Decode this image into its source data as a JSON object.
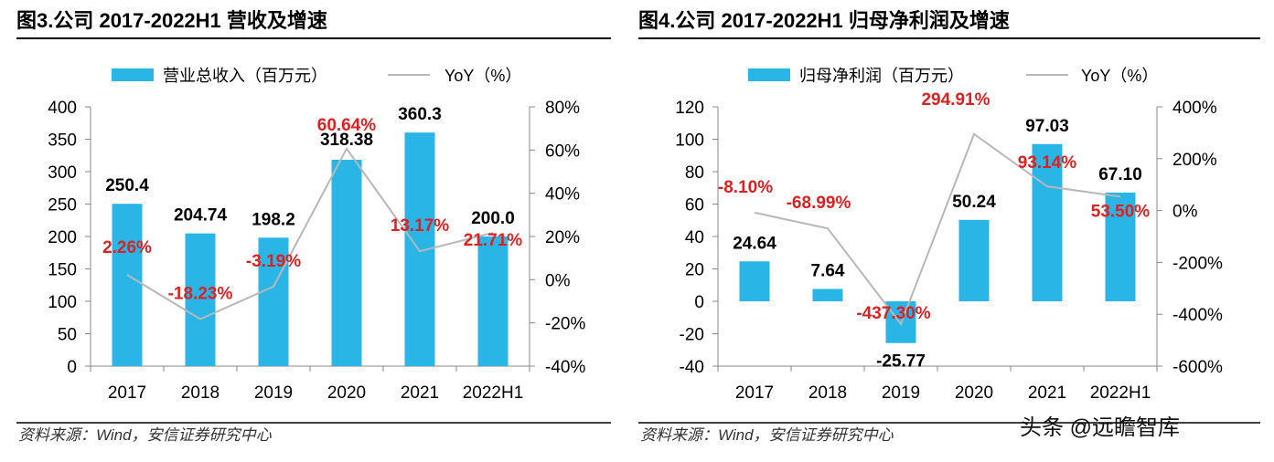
{
  "chart_data": [
    {
      "type": "bar",
      "title": "图3.公司 2017-2022H1 营收及增速",
      "categories": [
        "2017",
        "2018",
        "2019",
        "2020",
        "2021",
        "2022H1"
      ],
      "series": [
        {
          "name": "营业总收入（百万元）",
          "type": "bar",
          "axis": "left",
          "values": [
            250.4,
            204.74,
            198.2,
            318.38,
            360.3,
            200.0
          ],
          "labels": [
            "250.4",
            "204.74",
            "198.2",
            "318.38",
            "360.3",
            "200.0"
          ]
        },
        {
          "name": "YoY（%）",
          "type": "line",
          "axis": "right",
          "values": [
            2.26,
            -18.23,
            -3.19,
            60.64,
            13.17,
            21.71
          ],
          "labels": [
            "2.26%",
            "-18.23%",
            "-3.19%",
            "60.64%",
            "13.17%",
            "21.71%"
          ]
        }
      ],
      "ylim_left": [
        0,
        400
      ],
      "yticks_left": [
        "400",
        "350",
        "300",
        "250",
        "200",
        "150",
        "100",
        "50",
        "0"
      ],
      "ylim_right": [
        -40,
        80
      ],
      "yticks_right": [
        "80%",
        "60%",
        "40%",
        "20%",
        "0%",
        "-20%",
        "-40%"
      ],
      "bar_color": "#29b6e6",
      "line_color": "#b8b8b8",
      "label_color": "#e02020",
      "grid": false,
      "legend_position": "top",
      "source": "资料来源：Wind，安信证券研究中心"
    },
    {
      "type": "bar",
      "title": "图4.公司 2017-2022H1 归母净利润及增速",
      "categories": [
        "2017",
        "2018",
        "2019",
        "2020",
        "2021",
        "2022H1"
      ],
      "series": [
        {
          "name": "归母净利润（百万元）",
          "type": "bar",
          "axis": "left",
          "values": [
            24.64,
            7.64,
            -25.77,
            50.24,
            97.03,
            67.1
          ],
          "labels": [
            "24.64",
            "7.64",
            "-25.77",
            "50.24",
            "97.03",
            "67.10"
          ]
        },
        {
          "name": "YoY（%）",
          "type": "line",
          "axis": "right",
          "values": [
            -8.1,
            -68.99,
            -437.3,
            294.91,
            93.14,
            53.5
          ],
          "labels": [
            "-8.10%",
            "-68.99%",
            "-437.30%",
            "294.91%",
            "93.14%",
            "53.50%"
          ]
        }
      ],
      "ylim_left": [
        -40,
        120
      ],
      "yticks_left": [
        "120",
        "100",
        "80",
        "60",
        "40",
        "20",
        "0",
        "-20",
        "-40"
      ],
      "ylim_right": [
        -600,
        400
      ],
      "yticks_right": [
        "400%",
        "200%",
        "0%",
        "-200%",
        "-400%",
        "-600%"
      ],
      "bar_color": "#29b6e6",
      "line_color": "#b8b8b8",
      "label_color": "#e02020",
      "grid": false,
      "legend_position": "top",
      "source": "资料来源：Wind，安信证券研究中心"
    }
  ],
  "watermark": "头条 @远瞻智库"
}
